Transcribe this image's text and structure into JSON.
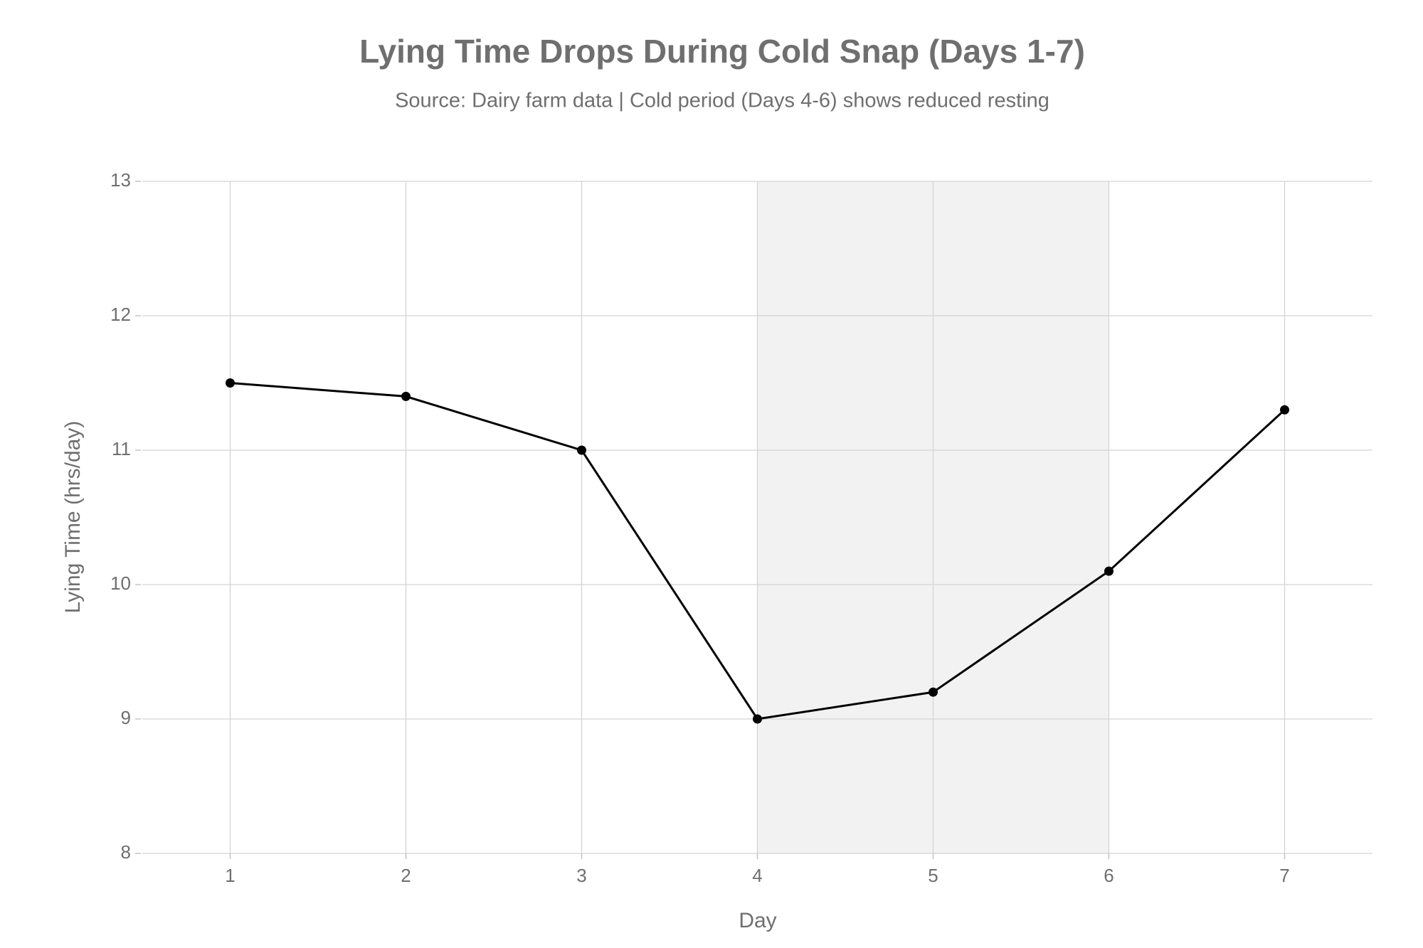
{
  "chart_data": {
    "type": "line",
    "title": "Lying Time Drops During Cold Snap (Days 1-7)",
    "subtitle": "Source: Dairy farm data | Cold period (Days 4-6) shows reduced resting",
    "x_label": "Day",
    "y_label": "Lying Time (hrs/day)",
    "x": [
      1,
      2,
      3,
      4,
      5,
      6,
      7
    ],
    "values": [
      11.5,
      11.4,
      11.0,
      9.0,
      9.2,
      10.1,
      11.3
    ],
    "color": "#000000",
    "highlight_range": [
      4,
      6
    ],
    "highlight_color": "#f2f2f2",
    "xlim": [
      0.5,
      7.5
    ],
    "xticks": [
      1,
      2,
      3,
      4,
      5,
      6,
      7
    ],
    "ylim": [
      8,
      13
    ],
    "yticks": [
      8,
      9,
      10,
      11,
      12,
      13
    ],
    "grid": true
  }
}
